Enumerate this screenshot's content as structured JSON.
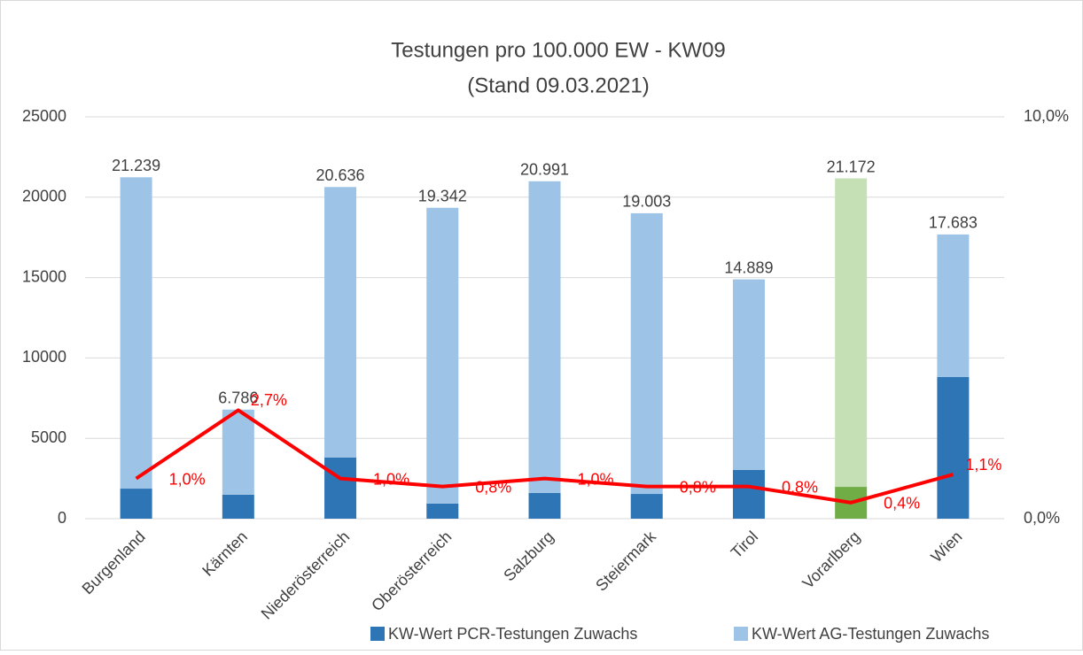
{
  "chart_data": {
    "type": "bar",
    "title": "Testungen pro 100.000 EW - KW09",
    "subtitle": "(Stand 09.03.2021)",
    "categories": [
      "Burgenland",
      "Kärnten",
      "Niederösterreich",
      "Oberösterreich",
      "Salzburg",
      "Steiermark",
      "Tirol",
      "Vorarlberg",
      "Wien"
    ],
    "series": [
      {
        "name": "KW-Wert PCR-Testungen Zuwachs",
        "color": "#2e75b6",
        "point_colors": [
          "#2e75b6",
          "#2e75b6",
          "#2e75b6",
          "#2e75b6",
          "#2e75b6",
          "#2e75b6",
          "#2e75b6",
          "#70ad47",
          "#2e75b6"
        ],
        "values": [
          1870,
          1490,
          3800,
          940,
          1600,
          1540,
          3030,
          1980,
          8810
        ]
      },
      {
        "name": "KW-Wert AG-Testungen Zuwachs",
        "color": "#9dc3e6",
        "point_colors": [
          "#9dc3e6",
          "#9dc3e6",
          "#9dc3e6",
          "#9dc3e6",
          "#9dc3e6",
          "#9dc3e6",
          "#9dc3e6",
          "#c5e0b4",
          "#9dc3e6"
        ],
        "values": [
          19369,
          5296,
          16836,
          18402,
          19391,
          17463,
          11859,
          19192,
          8873
        ]
      },
      {
        "type": "line",
        "axis": "y2",
        "color": "#ff0000",
        "values": [
          1.0,
          2.7,
          1.0,
          0.8,
          1.0,
          0.8,
          0.8,
          0.4,
          1.1
        ],
        "value_labels": [
          "1,0%",
          "2,7%",
          "1,0%",
          "0,8%",
          "1,0%",
          "0,8%",
          "0,8%",
          "0,4%",
          "1,1%"
        ]
      }
    ],
    "totals": [
      21239,
      6786,
      20636,
      19342,
      20991,
      19003,
      14889,
      21172,
      17683
    ],
    "total_labels": [
      "21.239",
      "6.786",
      "20.636",
      "19.342",
      "20.991",
      "19.003",
      "14.889",
      "21.172",
      "17.683"
    ],
    "ylim": [
      0,
      25000
    ],
    "yticks": [
      0,
      5000,
      10000,
      15000,
      20000,
      25000
    ],
    "y2lim": [
      0,
      10
    ],
    "y2ticks": [
      {
        "value": 0,
        "label": "0,0%"
      },
      {
        "value": 10,
        "label": "10,0%"
      }
    ],
    "grid": true,
    "legend": "bottom"
  }
}
